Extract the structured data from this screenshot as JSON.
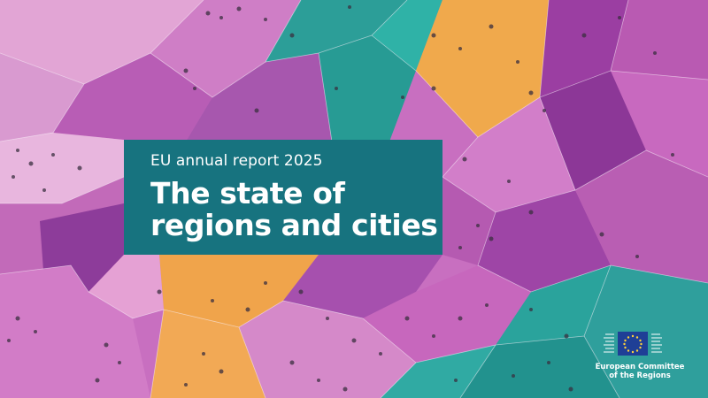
{
  "report": {
    "subtitle": "EU annual report 2025",
    "title_line1": "The state of",
    "title_line2": "regions and cities"
  },
  "logo": {
    "line1": "European Committee",
    "line2": "of the Regions",
    "icon": "eu-flag-icon"
  },
  "colors": {
    "title_box": "#17737f",
    "magenta": "#c35fb8",
    "purple": "#8f3c9c",
    "orange": "#f2a043",
    "teal": "#2aa49b",
    "pink": "#e9a2d2"
  }
}
